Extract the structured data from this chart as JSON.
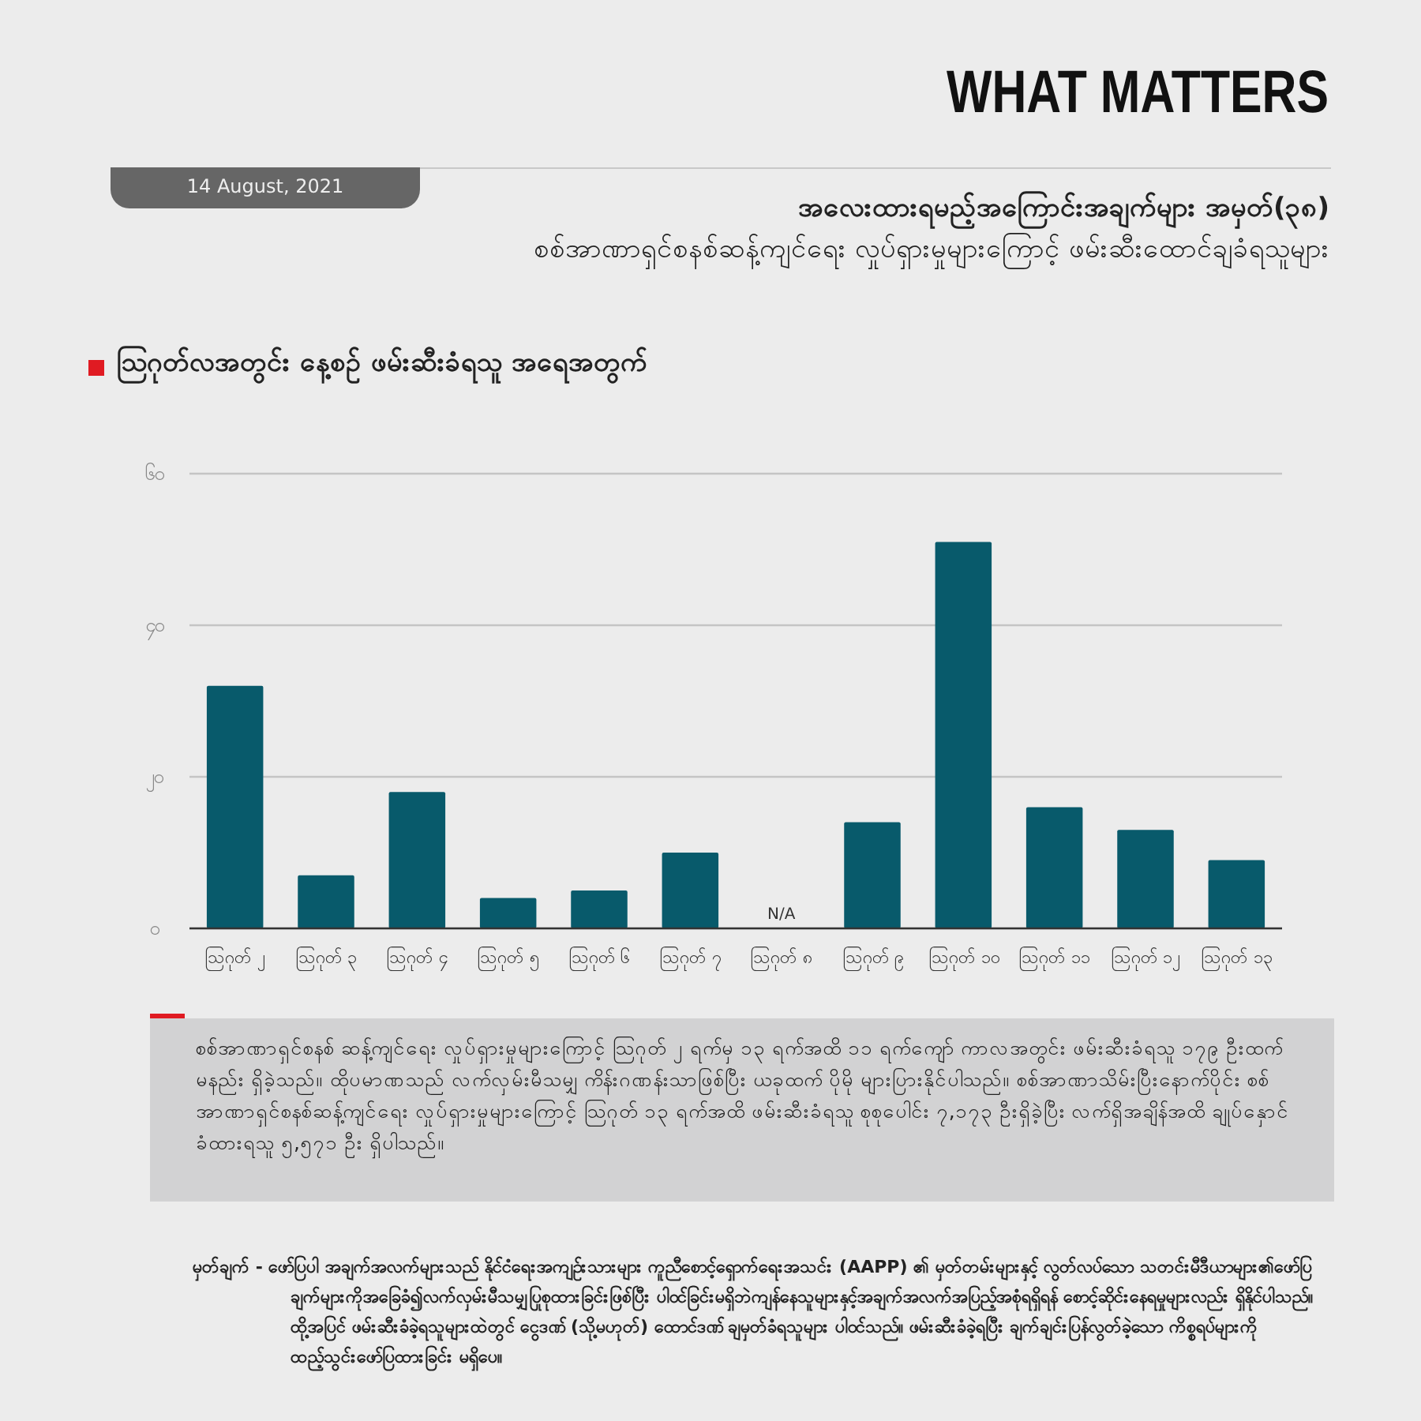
{
  "chart_data": {
    "type": "bar",
    "title": "အလေးထားရမည့်အကြောင်းအချက်များ အမှတ်(၃၈)",
    "subtitle": "စစ်အာဏာရှင်စနစ်ဆန့်ကျင်ရေး လှုပ်ရှားမှုများကြောင့် ဖမ်းဆီးထောင်ချခံရသူများ",
    "annotations": [
      "WHAT MATTERS",
      "14 August, 2021",
      "ဩဂုတ်လအတွင်း နေ့စဉ် ဖမ်းဆီးခံရသူ အရေအတွက်",
      "စစ်အာဏာရှင်စနစ် ဆန့်ကျင်ရေး လှုပ်ရှားမှုများကြောင့် ဩဂုတ် ၂ ရက်မှ ၁၃ ရက်အထိ ၁၁ ရက်ကျော် ကာလအတွင်း ဖမ်းဆီးခံရသူ ၁၇၉ ဦးထက်မနည်း ရှိခဲ့သည်။ ထိုပမာဏသည် လက်လှမ်းမီသမျှ ကိန်းဂဏန်းသာဖြစ်ပြီး ယခုထက် ပိုမို များပြားနိုင်ပါသည်။ စစ်အာဏာသိမ်းပြီးနောက်ပိုင်း စစ်အာဏာရှင်စနစ်ဆန့်ကျင်ရေး လှုပ်ရှားမှုများကြောင့် ဩဂုတ် ၁၃ ရက်အထိ ဖမ်းဆီးခံရသူ စုစုပေါင်း ၇,၁၇၃ ဦးရှိခဲ့ပြီး လက်ရှိအချိန်အထိ ချုပ်နှောင်ခံထားရသူ ၅,၅၇၁ ဦး ရှိပါသည်။",
      "မှတ်ချက် - ဖော်ပြပါ အချက်အလက်များသည် နိုင်ငံရေးအကျဉ်းသားများ ကူညီစောင့်ရှောက်ရေးအသင်း (AAPP) ၏ မှတ်တမ်းများနှင့် လွတ်လပ်သော သတင်းမီဒီယာများ၏ဖော်ပြချက်များကိုအခြေခံ၍လက်လှမ်းမီသမျှပြုစုထားခြင်းဖြစ်ပြီး ပါဝင်ခြင်းမရှိဘဲကျန်နေသူများနှင့်အချက်အလက်အပြည့်အစုံရရှိရန် စောင့်ဆိုင်းနေရမှုများလည်း ရှိနိုင်ပါသည်။ ထို့အပြင် ဖမ်းဆီးခံခဲ့ရသူများထဲတွင် ငွေဒဏ် (သို့မဟုတ်) ထောင်ဒဏ် ချမှတ်ခံရသူများ ပါဝင်သည်။ ဖမ်းဆီးခံခဲ့ရပြီး ချက်ချင်းပြန်လွတ်ခဲ့သော ကိစ္စရပ်များကို ထည့်သွင်းဖော်ပြထားခြင်း မရှိပေ။",
      "N/A"
    ],
    "categories": [
      "ဩဂုတ် ၂",
      "ဩဂုတ် ၃",
      "ဩဂုတ် ၄",
      "ဩဂုတ် ၅",
      "ဩဂုတ် ၆",
      "ဩဂုတ် ၇",
      "ဩဂုတ် ၈",
      "ဩဂုတ် ၉",
      "ဩဂုတ် ၁၀",
      "ဩဂုတ် ၁၁",
      "ဩဂုတ် ၁၂",
      "ဩဂုတ် ၁၃"
    ],
    "values": [
      32,
      7,
      18,
      4,
      5,
      10,
      null,
      14,
      51,
      16,
      13,
      9
    ],
    "color": "#085a6b",
    "ylim": [
      0,
      60
    ],
    "yticks": [
      {
        "value": 0,
        "label": "၀"
      },
      {
        "value": 20,
        "label": "၂၀"
      },
      {
        "value": 40,
        "label": "၄၀"
      },
      {
        "value": 60,
        "label": "၆၀"
      }
    ],
    "grid": "y"
  }
}
